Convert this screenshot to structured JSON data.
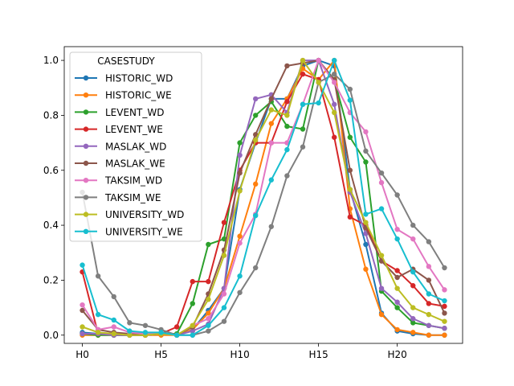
{
  "chart_data": {
    "type": "line",
    "x": [
      "H0",
      "H1",
      "H2",
      "H3",
      "H4",
      "H5",
      "H6",
      "H7",
      "H8",
      "H9",
      "H10",
      "H11",
      "H12",
      "H13",
      "H14",
      "H15",
      "H16",
      "H17",
      "H18",
      "H19",
      "H20",
      "H21",
      "H22",
      "H23"
    ],
    "xticks": [
      "H0",
      "H5",
      "H10",
      "H15",
      "H20"
    ],
    "ylim": [
      -0.03,
      1.05
    ],
    "yticks": [
      "0.0",
      "0.2",
      "0.4",
      "0.6",
      "0.8",
      "1.0"
    ],
    "grid": false,
    "legend": {
      "title": "CASESTUDY",
      "position": "upper-left"
    },
    "series": [
      {
        "name": "HISTORIC_WD",
        "color": "#1f77b4",
        "values": [
          0.01,
          0.005,
          0.0,
          0.0,
          0.0,
          0.005,
          0.0,
          0.02,
          0.09,
          0.17,
          0.53,
          0.7,
          0.86,
          0.86,
          0.98,
          1.0,
          0.98,
          0.53,
          0.33,
          0.08,
          0.015,
          0.005,
          0.0,
          0.0
        ]
      },
      {
        "name": "HISTORIC_WE",
        "color": "#ff7f0e",
        "values": [
          0.0,
          0.0,
          0.0,
          0.0,
          0.0,
          0.0,
          0.0,
          0.02,
          0.08,
          0.17,
          0.36,
          0.55,
          0.77,
          0.86,
          0.97,
          0.93,
          1.0,
          0.46,
          0.24,
          0.075,
          0.02,
          0.01,
          0.0,
          0.0
        ]
      },
      {
        "name": "LEVENT_WD",
        "color": "#2ca02c",
        "values": [
          0.005,
          0.0,
          0.0,
          0.0,
          0.0,
          0.005,
          0.005,
          0.115,
          0.33,
          0.35,
          0.7,
          0.8,
          0.85,
          0.76,
          0.75,
          1.0,
          0.93,
          0.72,
          0.63,
          0.16,
          0.1,
          0.045,
          0.035,
          0.025
        ]
      },
      {
        "name": "LEVENT_WE",
        "color": "#d62728",
        "values": [
          0.23,
          0.005,
          0.005,
          0.0,
          0.0,
          0.005,
          0.03,
          0.195,
          0.195,
          0.41,
          0.6,
          0.7,
          0.7,
          0.85,
          0.95,
          0.93,
          0.72,
          0.43,
          0.4,
          0.27,
          0.235,
          0.18,
          0.115,
          0.105
        ]
      },
      {
        "name": "MASLAK_WD",
        "color": "#9467bd",
        "values": [
          0.005,
          0.005,
          0.0,
          0.0,
          0.0,
          0.005,
          0.0,
          0.015,
          0.04,
          0.17,
          0.655,
          0.86,
          0.875,
          0.81,
          1.0,
          1.0,
          0.84,
          0.52,
          0.37,
          0.17,
          0.12,
          0.06,
          0.035,
          0.025
        ]
      },
      {
        "name": "MASLAK_WE",
        "color": "#8c564b",
        "values": [
          0.09,
          0.02,
          0.01,
          0.005,
          0.0,
          0.005,
          0.0,
          0.03,
          0.15,
          0.31,
          0.59,
          0.73,
          0.86,
          0.98,
          0.99,
          1.0,
          0.93,
          0.6,
          0.39,
          0.27,
          0.21,
          0.24,
          0.2,
          0.08
        ]
      },
      {
        "name": "TAKSIM_WD",
        "color": "#e377c2",
        "values": [
          0.11,
          0.02,
          0.03,
          0.01,
          0.005,
          0.005,
          0.0,
          0.035,
          0.06,
          0.15,
          0.335,
          0.44,
          0.7,
          0.7,
          0.84,
          1.0,
          0.92,
          0.81,
          0.74,
          0.555,
          0.385,
          0.35,
          0.25,
          0.165
        ]
      },
      {
        "name": "TAKSIM_WE",
        "color": "#7f7f7f",
        "values": [
          0.52,
          0.215,
          0.14,
          0.045,
          0.035,
          0.02,
          0.0,
          0.0,
          0.015,
          0.05,
          0.155,
          0.245,
          0.395,
          0.58,
          0.685,
          0.92,
          0.95,
          0.895,
          0.67,
          0.59,
          0.51,
          0.4,
          0.34,
          0.245
        ]
      },
      {
        "name": "UNIVERSITY_WD",
        "color": "#bcbd22",
        "values": [
          0.03,
          0.01,
          0.005,
          0.0,
          0.0,
          0.005,
          0.0,
          0.035,
          0.13,
          0.29,
          0.525,
          0.71,
          0.82,
          0.8,
          1.0,
          0.92,
          0.81,
          0.53,
          0.41,
          0.29,
          0.17,
          0.1,
          0.075,
          0.05
        ]
      },
      {
        "name": "UNIVERSITY_WE",
        "color": "#17becf",
        "values": [
          0.255,
          0.075,
          0.055,
          0.015,
          0.01,
          0.01,
          0.0,
          0.0,
          0.035,
          0.1,
          0.215,
          0.435,
          0.565,
          0.675,
          0.84,
          0.845,
          1.0,
          0.855,
          0.44,
          0.46,
          0.35,
          0.23,
          0.15,
          0.125
        ]
      }
    ]
  }
}
